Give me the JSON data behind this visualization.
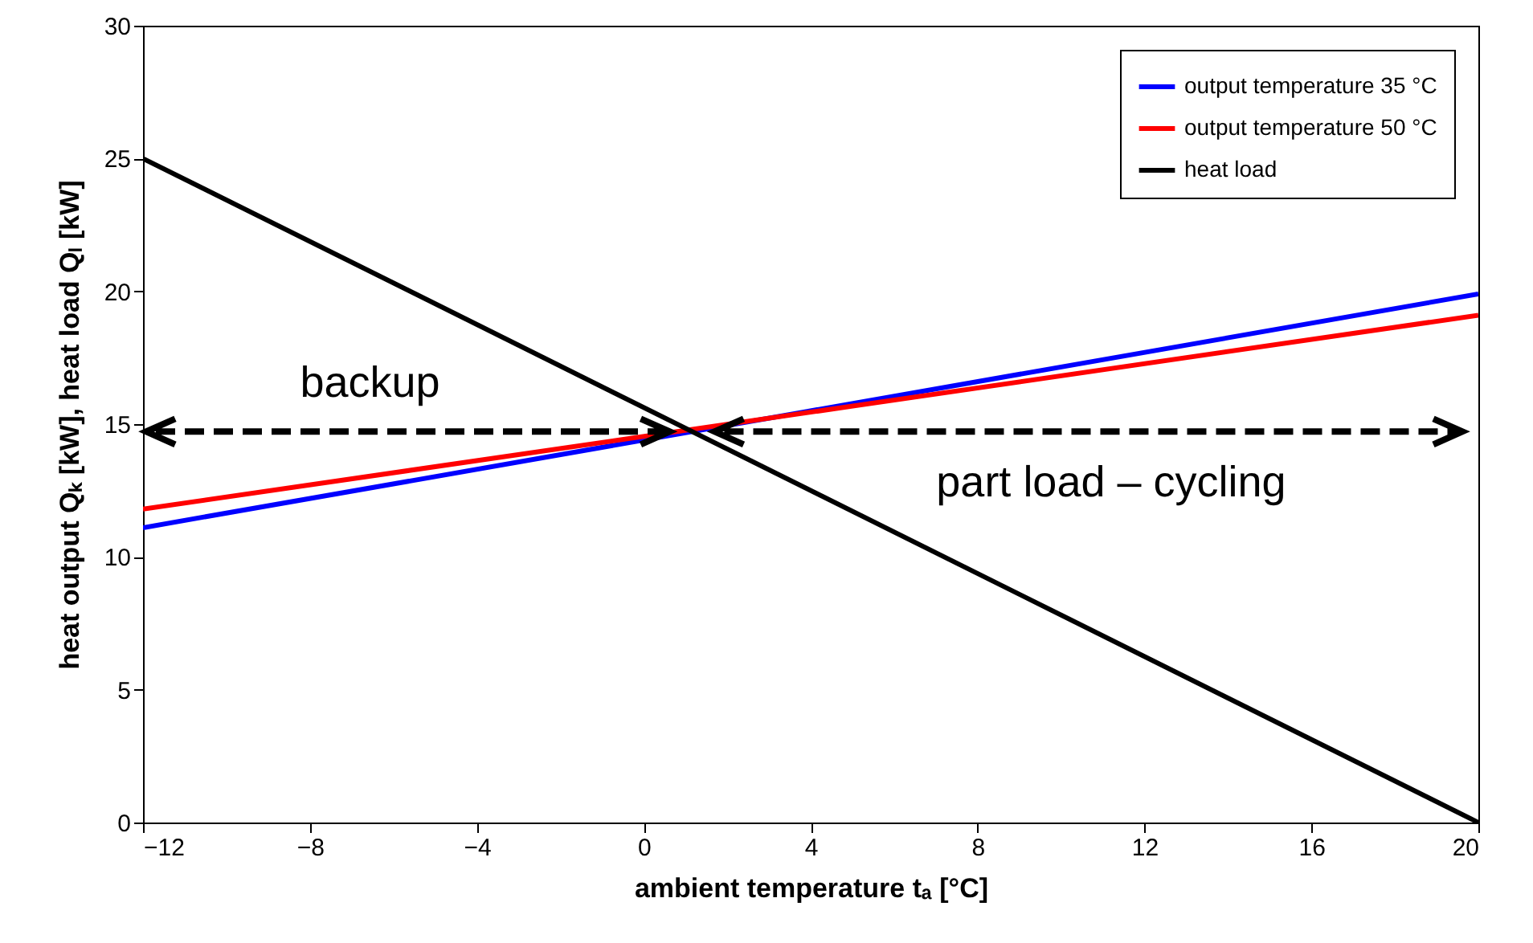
{
  "chart_data": {
    "type": "line",
    "xlabel": "ambient temperature tₐ [°C]",
    "ylabel": "heat output Qₖ [kW], heat load Qₗ [kW]",
    "x": [
      -12,
      20
    ],
    "series": [
      {
        "name": "output temperature 35 °C",
        "color": "#0000ff",
        "values": [
          11.1,
          19.9
        ]
      },
      {
        "name": "output temperature 50 °C",
        "color": "#ff0000",
        "values": [
          11.8,
          19.1
        ]
      },
      {
        "name": "heat load",
        "color": "#000000",
        "values": [
          25,
          0
        ]
      }
    ],
    "xlim": [
      -12,
      20
    ],
    "xticks": [
      -12,
      -8,
      -4,
      0,
      4,
      8,
      12,
      16,
      20
    ],
    "ylim": [
      0,
      30
    ],
    "yticks": [
      0,
      5,
      10,
      15,
      20,
      25,
      30
    ],
    "annotations": [
      "backup",
      "part load – cycling"
    ],
    "legend": "top right",
    "grid": false,
    "marker": "none",
    "line_style": "solid"
  }
}
